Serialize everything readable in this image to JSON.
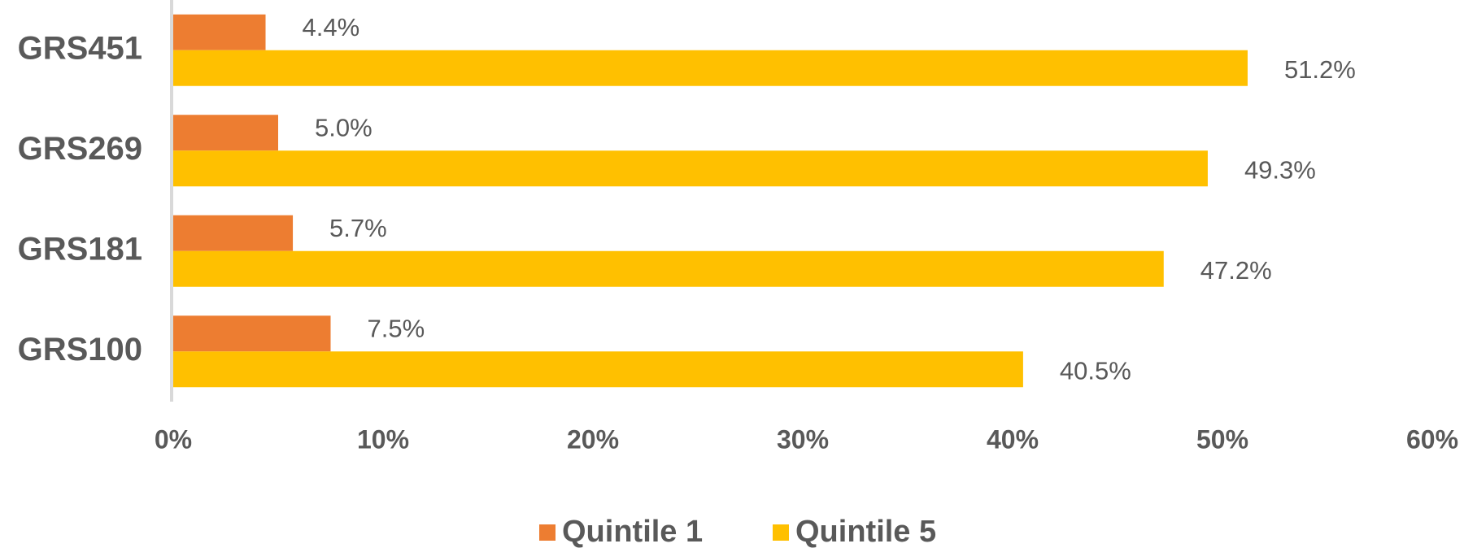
{
  "chart_data": {
    "type": "hbar",
    "categories": [
      "GRS451",
      "GRS269",
      "GRS181",
      "GRS100"
    ],
    "series": [
      {
        "name": "Quintile 1",
        "color": "#ED7D31",
        "values": [
          4.4,
          5.0,
          5.7,
          7.5
        ],
        "value_labels": [
          "4.4%",
          "5.0%",
          "5.7%",
          "7.5%"
        ]
      },
      {
        "name": "Quintile 5",
        "color": "#FFC000",
        "values": [
          51.2,
          49.3,
          47.2,
          40.5
        ],
        "value_labels": [
          "51.2%",
          "49.3%",
          "47.2%",
          "40.5%"
        ]
      }
    ],
    "xlim": [
      0,
      60
    ],
    "xticks": [
      {
        "value": 0,
        "label": "0%"
      },
      {
        "value": 10,
        "label": "10%"
      },
      {
        "value": 20,
        "label": "20%"
      },
      {
        "value": 30,
        "label": "30%"
      },
      {
        "value": 40,
        "label": "40%"
      },
      {
        "value": 50,
        "label": "50%"
      },
      {
        "value": 60,
        "label": "60%"
      }
    ],
    "legend": "bottom"
  }
}
